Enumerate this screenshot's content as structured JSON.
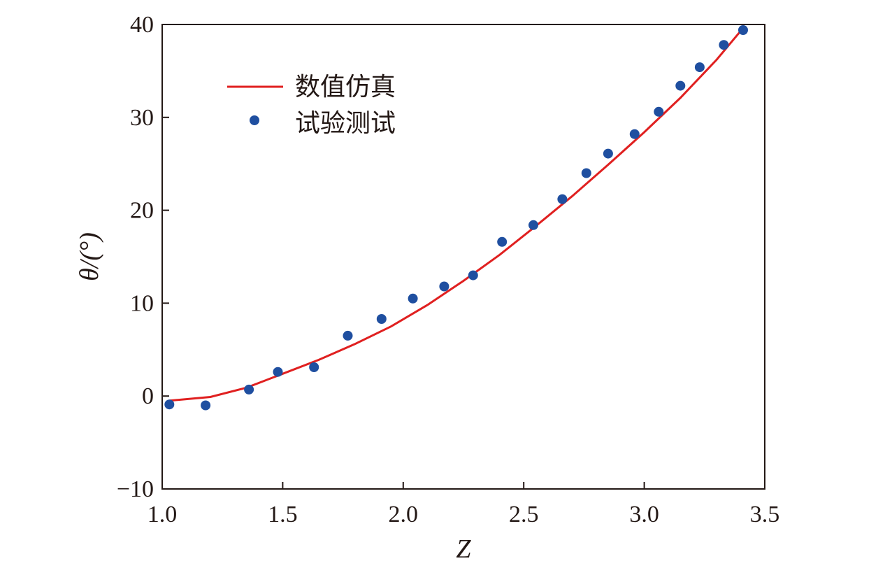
{
  "chart_data": {
    "type": "scatter",
    "title": "",
    "xlabel": "Z",
    "ylabel": "θ/(°)",
    "xlim": [
      1.0,
      3.5
    ],
    "ylim": [
      -10,
      40
    ],
    "x_ticks": [
      "1.0",
      "1.5",
      "2.0",
      "2.5",
      "3.0",
      "3.5"
    ],
    "y_ticks": [
      "−10",
      "0",
      "10",
      "20",
      "30",
      "40"
    ],
    "grid": false,
    "legend": "top-left",
    "series": [
      {
        "name": "数值仿真",
        "kind": "line",
        "color": "#e02020",
        "x": [
          1.03,
          1.2,
          1.35,
          1.5,
          1.65,
          1.8,
          1.95,
          2.1,
          2.25,
          2.4,
          2.55,
          2.7,
          2.85,
          3.0,
          3.15,
          3.3,
          3.4
        ],
        "y": [
          -0.5,
          -0.1,
          0.9,
          2.4,
          3.9,
          5.6,
          7.5,
          9.8,
          12.4,
          15.2,
          18.3,
          21.5,
          24.9,
          28.4,
          32.1,
          36.2,
          39.3
        ]
      },
      {
        "name": "试验测试",
        "kind": "scatter",
        "color": "#1f4fa0",
        "x": [
          1.03,
          1.18,
          1.36,
          1.48,
          1.63,
          1.77,
          1.91,
          2.04,
          2.17,
          2.29,
          2.41,
          2.54,
          2.66,
          2.76,
          2.85,
          2.96,
          3.06,
          3.15,
          3.23,
          3.33,
          3.41
        ],
        "y": [
          -0.9,
          -1.0,
          0.7,
          2.6,
          3.1,
          6.5,
          8.3,
          10.5,
          11.8,
          13.0,
          16.6,
          18.4,
          21.2,
          24.0,
          26.1,
          28.2,
          30.6,
          33.4,
          35.4,
          37.8,
          39.4
        ]
      }
    ]
  }
}
